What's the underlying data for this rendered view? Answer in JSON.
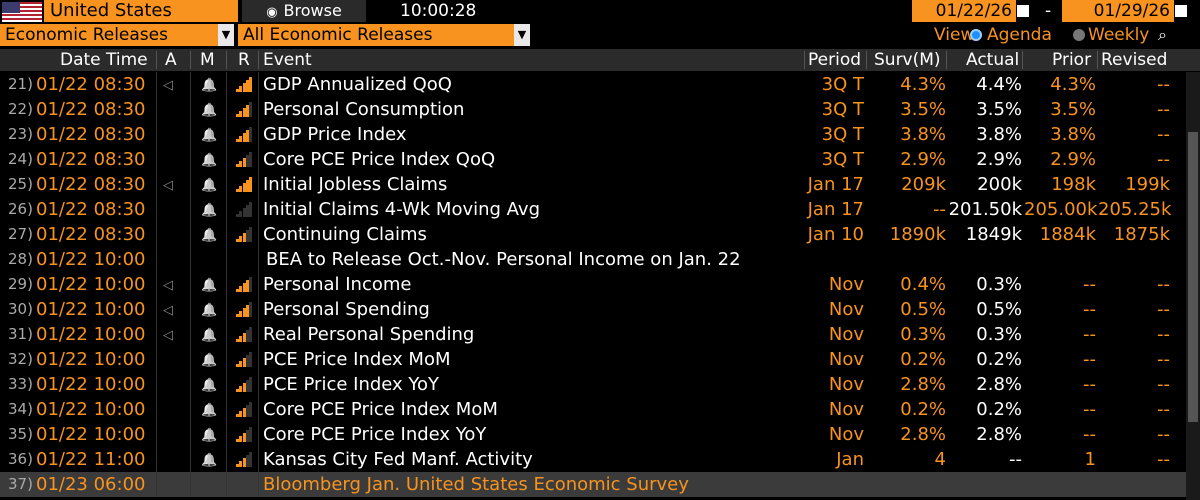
{
  "top": {
    "country": "United States",
    "browse": "Browse",
    "time": "10:00:28",
    "date_from": "01/22/26",
    "date_sep": "-",
    "date_to": "01/29/26"
  },
  "filters": {
    "category": "Economic Releases",
    "subcategory": "All Economic Releases",
    "view_label": "View",
    "agenda": "Agenda",
    "weekly": "Weekly"
  },
  "header": {
    "datetime": "Date Time",
    "a": "A",
    "m": "M",
    "r": "R",
    "event": "Event",
    "period": "Period",
    "surv": "Surv(M)",
    "actual": "Actual",
    "prior": "Prior",
    "revised": "Revised"
  },
  "colors": {
    "accent": "#f7931e",
    "header_bg": "#2b2b2b",
    "alert_blue": "#1e90ff"
  },
  "rows": [
    {
      "num": "21)",
      "dt": "01/22 08:30",
      "alert": true,
      "rel": 5,
      "event": "GDP Annualized QoQ",
      "period": "3Q T",
      "surv": "4.3%",
      "actual": "4.4%",
      "prior": "4.3%",
      "revised": "--"
    },
    {
      "num": "22)",
      "dt": "01/22 08:30",
      "alert": false,
      "rel": 4,
      "event": "Personal Consumption",
      "period": "3Q T",
      "surv": "3.5%",
      "actual": "3.5%",
      "prior": "3.5%",
      "revised": "--"
    },
    {
      "num": "23)",
      "dt": "01/22 08:30",
      "alert": false,
      "rel": 4,
      "event": "GDP Price Index",
      "period": "3Q T",
      "surv": "3.8%",
      "actual": "3.8%",
      "prior": "3.8%",
      "revised": "--"
    },
    {
      "num": "24)",
      "dt": "01/22 08:30",
      "alert": false,
      "rel": 3,
      "event": "Core PCE Price Index QoQ",
      "period": "3Q T",
      "surv": "2.9%",
      "actual": "2.9%",
      "prior": "2.9%",
      "revised": "--"
    },
    {
      "num": "25)",
      "dt": "01/22 08:30",
      "alert": true,
      "rel": 5,
      "event": "Initial Jobless Claims",
      "period": "Jan 17",
      "surv": "209k",
      "actual": "200k",
      "prior": "198k",
      "revised": "199k"
    },
    {
      "num": "26)",
      "dt": "01/22 08:30",
      "alert": false,
      "rel": 0,
      "event": "Initial Claims 4-Wk Moving Avg",
      "period": "Jan 17",
      "surv": "--",
      "actual": "201.50k",
      "prior": "205.00k",
      "revised": "205.25k"
    },
    {
      "num": "27)",
      "dt": "01/22 08:30",
      "alert": false,
      "rel": 3,
      "event": "Continuing Claims",
      "period": "Jan 10",
      "surv": "1890k",
      "actual": "1849k",
      "prior": "1884k",
      "revised": "1875k"
    },
    {
      "num": "28)",
      "dt": "01/22 10:00",
      "alert": false,
      "rel": -1,
      "event": "BEA to Release Oct.-Nov. Personal Income on Jan. 22",
      "period": "",
      "surv": "",
      "actual": "",
      "prior": "",
      "revised": ""
    },
    {
      "num": "29)",
      "dt": "01/22 10:00",
      "alert": true,
      "rel": 4,
      "event": "Personal Income",
      "period": "Nov",
      "surv": "0.4%",
      "actual": "0.3%",
      "prior": "--",
      "revised": "--"
    },
    {
      "num": "30)",
      "dt": "01/22 10:00",
      "alert": true,
      "rel": 4,
      "event": "Personal Spending",
      "period": "Nov",
      "surv": "0.5%",
      "actual": "0.5%",
      "prior": "--",
      "revised": "--"
    },
    {
      "num": "31)",
      "dt": "01/22 10:00",
      "alert": true,
      "rel": 3,
      "event": "Real Personal Spending",
      "period": "Nov",
      "surv": "0.3%",
      "actual": "0.3%",
      "prior": "--",
      "revised": "--"
    },
    {
      "num": "32)",
      "dt": "01/22 10:00",
      "alert": false,
      "rel": 3,
      "event": "PCE Price Index MoM",
      "period": "Nov",
      "surv": "0.2%",
      "actual": "0.2%",
      "prior": "--",
      "revised": "--"
    },
    {
      "num": "33)",
      "dt": "01/22 10:00",
      "alert": false,
      "rel": 3,
      "event": "PCE Price Index YoY",
      "period": "Nov",
      "surv": "2.8%",
      "actual": "2.8%",
      "prior": "--",
      "revised": "--"
    },
    {
      "num": "34)",
      "dt": "01/22 10:00",
      "alert": false,
      "rel": 3,
      "event": "Core PCE Price Index MoM",
      "period": "Nov",
      "surv": "0.2%",
      "actual": "0.2%",
      "prior": "--",
      "revised": "--"
    },
    {
      "num": "35)",
      "dt": "01/22 10:00",
      "alert": false,
      "rel": 3,
      "event": "Core PCE Price Index YoY",
      "period": "Nov",
      "surv": "2.8%",
      "actual": "2.8%",
      "prior": "--",
      "revised": "--"
    },
    {
      "num": "36)",
      "dt": "01/22 11:00",
      "alert": false,
      "rel": 3,
      "event": "Kansas City Fed Manf. Activity",
      "period": "Jan",
      "surv": "4",
      "actual": "--",
      "prior": "1",
      "revised": "--"
    },
    {
      "num": "37)",
      "dt": "01/23 06:00",
      "alert": false,
      "rel": -1,
      "event": "Bloomberg Jan. United States Economic Survey",
      "period": "",
      "surv": "",
      "actual": "",
      "prior": "",
      "revised": ""
    }
  ]
}
